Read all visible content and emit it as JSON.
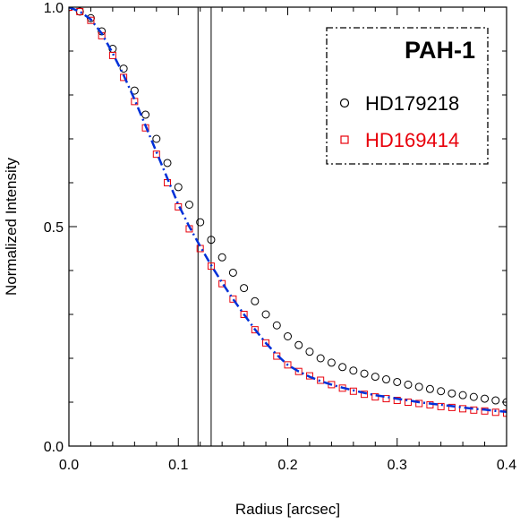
{
  "chart_data": {
    "type": "scatter",
    "xlabel": "Radius [arcsec]",
    "ylabel": "Normalized Intensity",
    "xlim": [
      0.0,
      0.4
    ],
    "ylim": [
      0.0,
      1.0
    ],
    "x_ticks": [
      0.0,
      0.1,
      0.2,
      0.3,
      0.4
    ],
    "x_tick_labels": [
      "0.0",
      "0.1",
      "0.2",
      "0.3",
      "0.4"
    ],
    "y_ticks": [
      0.0,
      0.5,
      1.0
    ],
    "y_tick_labels": [
      "0.0",
      "0.5",
      "1.0"
    ],
    "grid": false,
    "legend_position": "top-right",
    "legend_title": "PAH-1",
    "vertical_lines": [
      0.118,
      0.13
    ],
    "colors": {
      "hd179218": "#000000",
      "hd169414": "#e8000b",
      "model": "#0030d8"
    },
    "series": [
      {
        "name": "HD179218",
        "marker": "circle",
        "color": "#000000",
        "x": [
          0.0,
          0.01,
          0.02,
          0.03,
          0.04,
          0.05,
          0.06,
          0.07,
          0.08,
          0.09,
          0.1,
          0.11,
          0.12,
          0.13,
          0.14,
          0.15,
          0.16,
          0.17,
          0.18,
          0.19,
          0.2,
          0.21,
          0.22,
          0.23,
          0.24,
          0.25,
          0.26,
          0.27,
          0.28,
          0.29,
          0.3,
          0.31,
          0.32,
          0.33,
          0.34,
          0.35,
          0.36,
          0.37,
          0.38,
          0.39,
          0.4
        ],
        "y": [
          1.0,
          0.99,
          0.975,
          0.945,
          0.905,
          0.86,
          0.81,
          0.755,
          0.7,
          0.645,
          0.59,
          0.55,
          0.51,
          0.47,
          0.43,
          0.395,
          0.36,
          0.33,
          0.3,
          0.275,
          0.25,
          0.23,
          0.215,
          0.2,
          0.19,
          0.18,
          0.172,
          0.165,
          0.158,
          0.152,
          0.146,
          0.14,
          0.135,
          0.13,
          0.125,
          0.12,
          0.116,
          0.112,
          0.108,
          0.104,
          0.1
        ]
      },
      {
        "name": "HD169414",
        "marker": "square",
        "color": "#e8000b",
        "x": [
          0.0,
          0.01,
          0.02,
          0.03,
          0.04,
          0.05,
          0.06,
          0.07,
          0.08,
          0.09,
          0.1,
          0.11,
          0.12,
          0.13,
          0.14,
          0.15,
          0.16,
          0.17,
          0.18,
          0.19,
          0.2,
          0.21,
          0.22,
          0.23,
          0.24,
          0.25,
          0.26,
          0.27,
          0.28,
          0.29,
          0.3,
          0.31,
          0.32,
          0.33,
          0.34,
          0.35,
          0.36,
          0.37,
          0.38,
          0.39,
          0.4
        ],
        "y": [
          1.0,
          0.99,
          0.97,
          0.935,
          0.89,
          0.84,
          0.785,
          0.725,
          0.665,
          0.6,
          0.545,
          0.495,
          0.45,
          0.41,
          0.37,
          0.335,
          0.3,
          0.265,
          0.235,
          0.205,
          0.185,
          0.17,
          0.16,
          0.15,
          0.14,
          0.132,
          0.125,
          0.118,
          0.112,
          0.108,
          0.104,
          0.1,
          0.097,
          0.094,
          0.09,
          0.088,
          0.085,
          0.082,
          0.08,
          0.077,
          0.075
        ]
      },
      {
        "name": "",
        "line_style": "dash-dot",
        "color": "#0030d8",
        "x": [
          0.0,
          0.01,
          0.02,
          0.03,
          0.04,
          0.05,
          0.06,
          0.07,
          0.08,
          0.09,
          0.1,
          0.11,
          0.12,
          0.13,
          0.14,
          0.15,
          0.16,
          0.17,
          0.18,
          0.19,
          0.2,
          0.21,
          0.22,
          0.23,
          0.24,
          0.25,
          0.26,
          0.27,
          0.28,
          0.29,
          0.3,
          0.31,
          0.32,
          0.33,
          0.34,
          0.35,
          0.36,
          0.37,
          0.38,
          0.39,
          0.4
        ],
        "y": [
          1.0,
          0.99,
          0.972,
          0.94,
          0.895,
          0.845,
          0.79,
          0.73,
          0.67,
          0.61,
          0.55,
          0.5,
          0.455,
          0.412,
          0.372,
          0.335,
          0.3,
          0.266,
          0.235,
          0.208,
          0.185,
          0.17,
          0.158,
          0.148,
          0.14,
          0.133,
          0.127,
          0.121,
          0.116,
          0.112,
          0.108,
          0.104,
          0.1,
          0.097,
          0.094,
          0.091,
          0.088,
          0.085,
          0.083,
          0.08,
          0.078
        ]
      }
    ]
  }
}
